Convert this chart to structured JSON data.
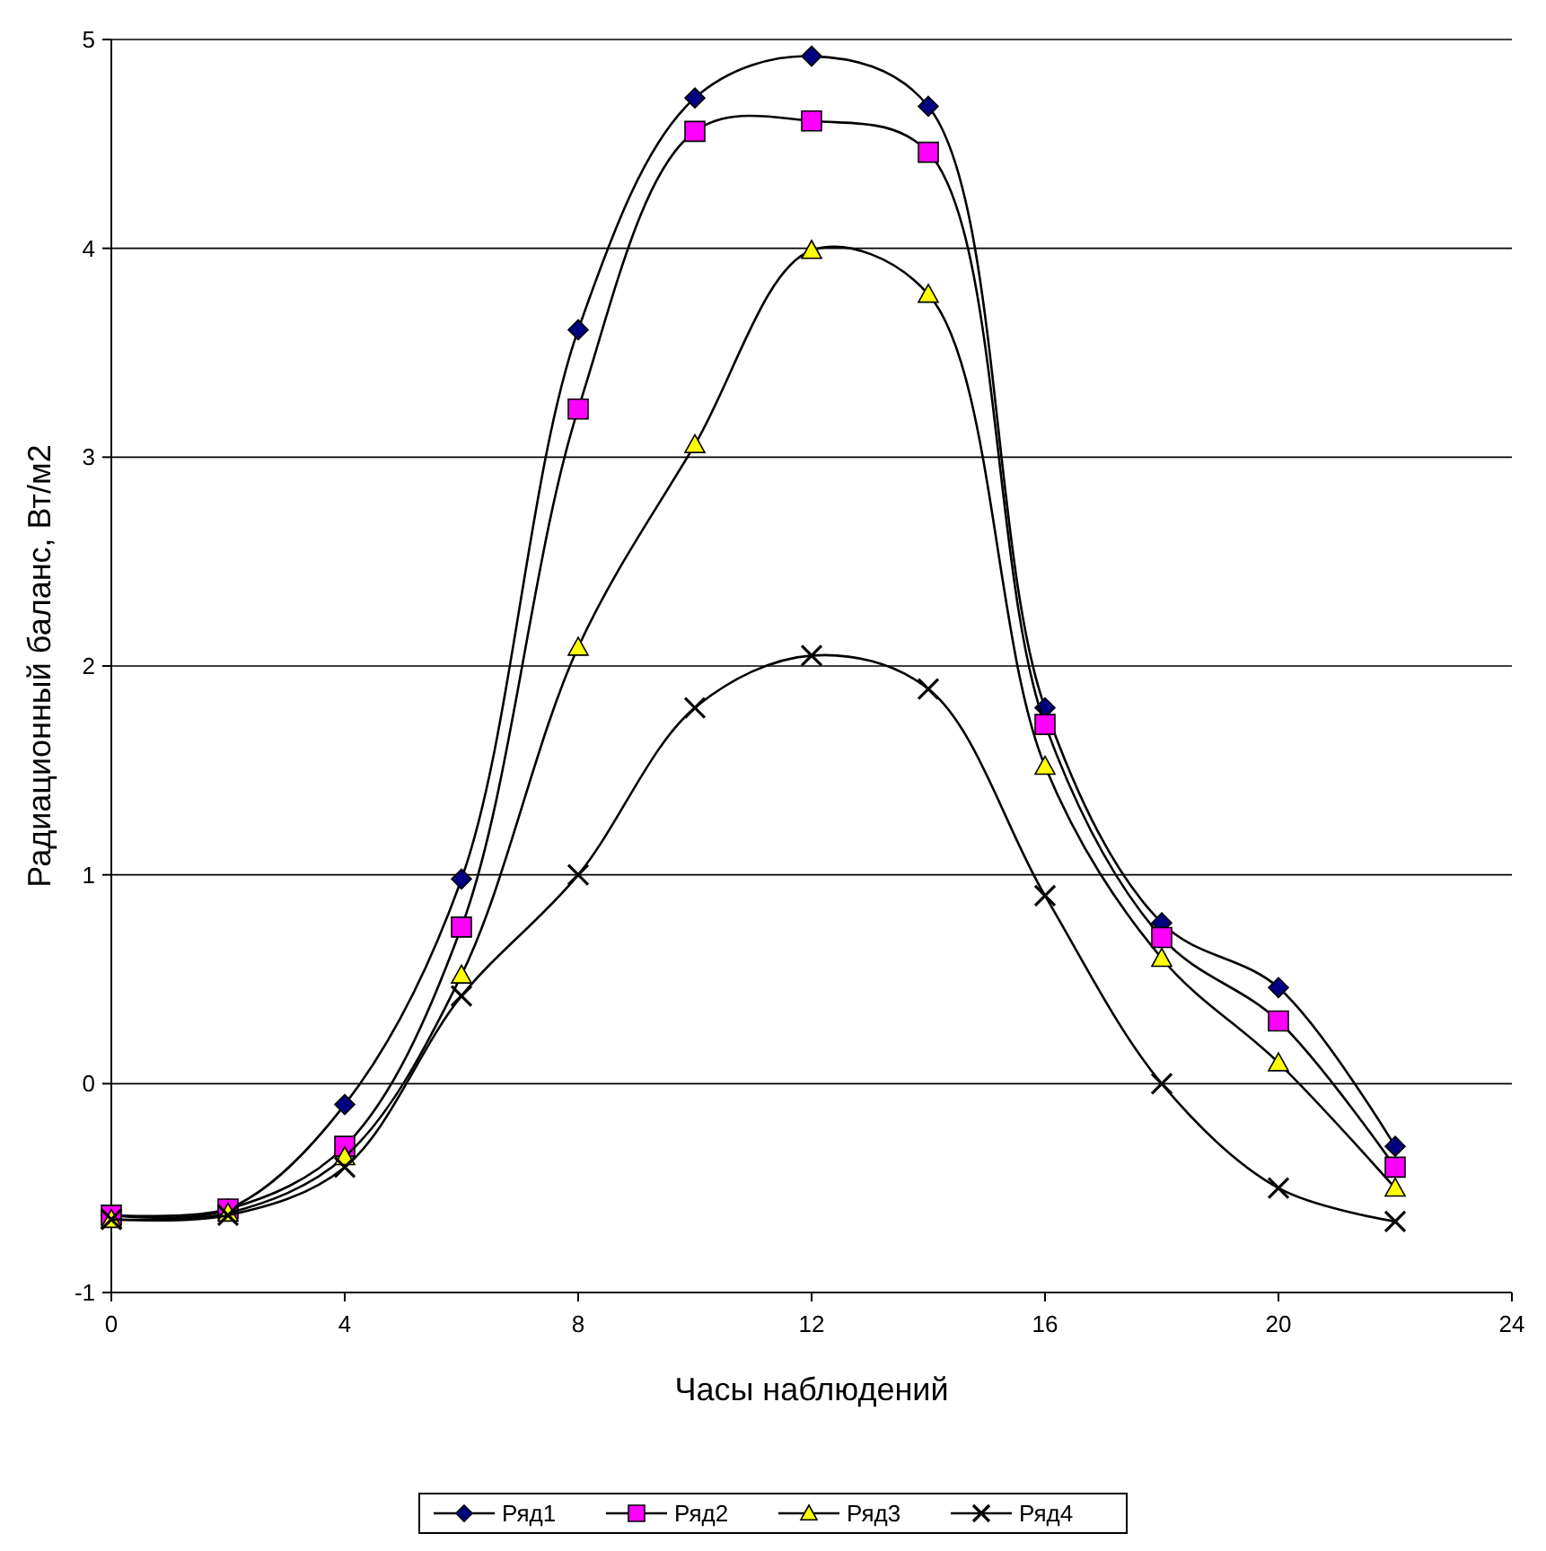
{
  "chart_data": {
    "type": "line",
    "xlabel": "Часы наблюдений",
    "ylabel": "Радиационный  баланс, Вт/м2",
    "x": [
      0,
      2,
      4,
      6,
      8,
      10,
      12,
      14,
      16,
      18,
      20,
      22
    ],
    "xlim": [
      0,
      24
    ],
    "xticks": [
      0,
      4,
      8,
      12,
      16,
      20,
      24
    ],
    "ylim": [
      -1,
      5
    ],
    "yticks": [
      -1,
      0,
      1,
      2,
      3,
      4,
      5
    ],
    "grid": "y",
    "legend": "bottom",
    "line_style": "solid",
    "series": [
      {
        "name": "Ряд1",
        "color": "#000080",
        "marker": "diamond",
        "values": [
          -0.63,
          -0.6,
          -0.1,
          0.98,
          3.61,
          4.72,
          4.92,
          4.68,
          1.8,
          0.77,
          0.46,
          -0.3
        ]
      },
      {
        "name": "Ряд2",
        "color": "#ff00ff",
        "marker": "square",
        "values": [
          -0.63,
          -0.6,
          -0.3,
          0.75,
          3.23,
          4.56,
          4.61,
          4.46,
          1.72,
          0.7,
          0.3,
          -0.4
        ]
      },
      {
        "name": "Ряд3",
        "color": "#ffff00",
        "marker": "triangle",
        "values": [
          -0.65,
          -0.62,
          -0.35,
          0.52,
          2.09,
          3.06,
          3.99,
          3.78,
          1.52,
          0.6,
          0.1,
          -0.5
        ]
      },
      {
        "name": "Ряд4",
        "color": "#000000",
        "marker": "cross",
        "values": [
          -0.65,
          -0.63,
          -0.4,
          0.42,
          1.0,
          1.8,
          2.05,
          1.89,
          0.9,
          0.0,
          -0.5,
          -0.66
        ]
      }
    ]
  }
}
